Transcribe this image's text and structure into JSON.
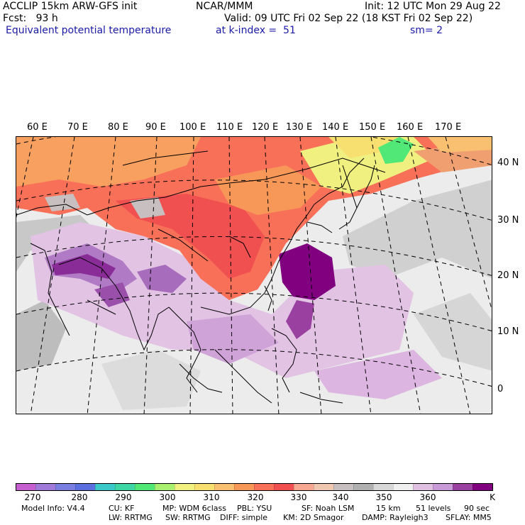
{
  "header": {
    "line1_left": "ACCLIP 15km ARW-GFS init",
    "line1_center": "NCAR/MMM",
    "line1_right": "Init: 12 UTC Mon 29 Aug 22",
    "line2_left": "Fcst:   93 h",
    "line2_right": "Valid: 09 UTC Fri 02 Sep 22 (18 KST Fri 02 Sep 22)",
    "line3_field": "Equivalent potential temperature",
    "line3_level": "at k-index =  51",
    "line3_smooth": "sm= 2"
  },
  "longitude_labels": [
    "60 E",
    "70 E",
    "80 E",
    "90 E",
    "100 E",
    "110 E",
    "120 E",
    "130 E",
    "140 E",
    "150 E",
    "160 E",
    "170 E"
  ],
  "latitude_labels": [
    "40 N",
    "30 N",
    "20 N",
    "10 N",
    "0"
  ],
  "colorbar": {
    "colors": [
      "#c55fd0",
      "#a07ad8",
      "#7a7ee0",
      "#5a6fe0",
      "#3bc8c8",
      "#3ed6a4",
      "#52e878",
      "#a8f070",
      "#f0f080",
      "#f8e070",
      "#f8c070",
      "#f89858",
      "#f87058",
      "#f05050",
      "#f8a890",
      "#f0c8b0",
      "#c8c0c0",
      "#b0b0b0",
      "#d8d8d8",
      "#f0f0f0",
      "#e0c0e0",
      "#c89ad8",
      "#9a40a0",
      "#800080"
    ],
    "labels": [
      "270",
      "280",
      "290",
      "300",
      "310",
      "320",
      "330",
      "340",
      "350",
      "360"
    ],
    "unit": "K"
  },
  "footer": {
    "line1": [
      "Model Info: V4.4",
      "CU: KF",
      "MP: WDM 6class",
      "PBL: YSU",
      "SF: Noah LSM",
      "15 km",
      "51 levels",
      "90 sec"
    ],
    "line2": [
      "LW: RRTMG",
      "SW: RRTMG",
      "DIFF: simple",
      "KM: 2D Smagor",
      "DAMP: Rayleigh3",
      "SFLAY: MM5"
    ]
  }
}
